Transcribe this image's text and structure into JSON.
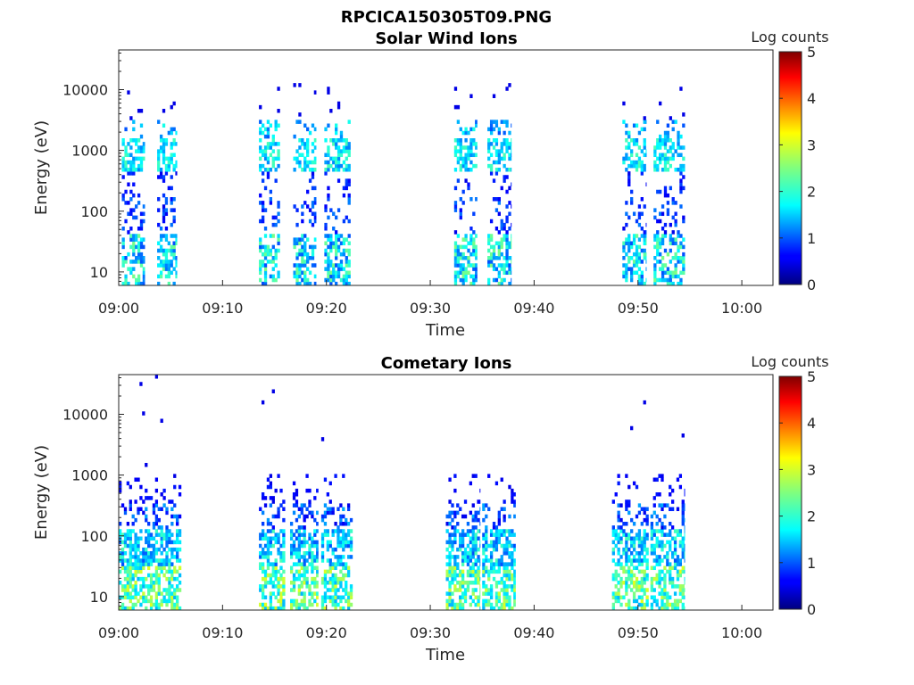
{
  "figure_title": "RPCICA150305T09.PNG",
  "colorbar_label": "Log counts",
  "colorbar_ticks": [
    "0",
    "1",
    "2",
    "3",
    "4",
    "5"
  ],
  "chart_data": [
    {
      "type": "heatmap",
      "title": "Solar Wind Ions",
      "xlabel": "Time",
      "ylabel": "Energy (eV)",
      "x_ticks": [
        "09:00",
        "09:10",
        "09:20",
        "09:30",
        "09:40",
        "09:50",
        "10:00"
      ],
      "y_ticks": [
        "10",
        "100",
        "1000",
        "10000"
      ],
      "y_scale": "log",
      "ylim": [
        6,
        45000
      ],
      "xlim_minutes": [
        0,
        63
      ],
      "clim": [
        0,
        5
      ],
      "bursts": [
        {
          "t_start": 0.3,
          "t_end": 2.5
        },
        {
          "t_start": 3.7,
          "t_end": 5.6
        },
        {
          "t_start": 13.5,
          "t_end": 15.5
        },
        {
          "t_start": 16.8,
          "t_end": 19.0
        },
        {
          "t_start": 19.8,
          "t_end": 22.3
        },
        {
          "t_start": 32.3,
          "t_end": 34.5
        },
        {
          "t_start": 35.5,
          "t_end": 37.8
        },
        {
          "t_start": 48.5,
          "t_end": 50.8
        },
        {
          "t_start": 51.5,
          "t_end": 54.5
        }
      ]
    },
    {
      "type": "heatmap",
      "title": "Cometary Ions",
      "xlabel": "Time",
      "ylabel": "Energy (eV)",
      "x_ticks": [
        "09:00",
        "09:10",
        "09:20",
        "09:30",
        "09:40",
        "09:50",
        "10:00"
      ],
      "y_ticks": [
        "10",
        "100",
        "1000",
        "10000"
      ],
      "y_scale": "log",
      "ylim": [
        6,
        45000
      ],
      "xlim_minutes": [
        0,
        63
      ],
      "clim": [
        0,
        5
      ],
      "bursts": [
        {
          "t_start": 0.0,
          "t_end": 3.0
        },
        {
          "t_start": 3.0,
          "t_end": 6.0
        },
        {
          "t_start": 13.5,
          "t_end": 16.0
        },
        {
          "t_start": 16.5,
          "t_end": 19.2
        },
        {
          "t_start": 19.5,
          "t_end": 22.5
        },
        {
          "t_start": 31.5,
          "t_end": 34.8
        },
        {
          "t_start": 35.0,
          "t_end": 38.2
        },
        {
          "t_start": 47.5,
          "t_end": 51.0
        },
        {
          "t_start": 51.2,
          "t_end": 54.5
        }
      ]
    }
  ]
}
